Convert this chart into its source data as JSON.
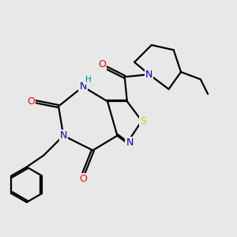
{
  "bg_color": "#e8e8e8",
  "bond_color": "#000000",
  "atom_colors": {
    "N": "#0000cc",
    "O": "#ff0000",
    "S": "#cccc00",
    "H": "#008080",
    "C": "#000000"
  }
}
